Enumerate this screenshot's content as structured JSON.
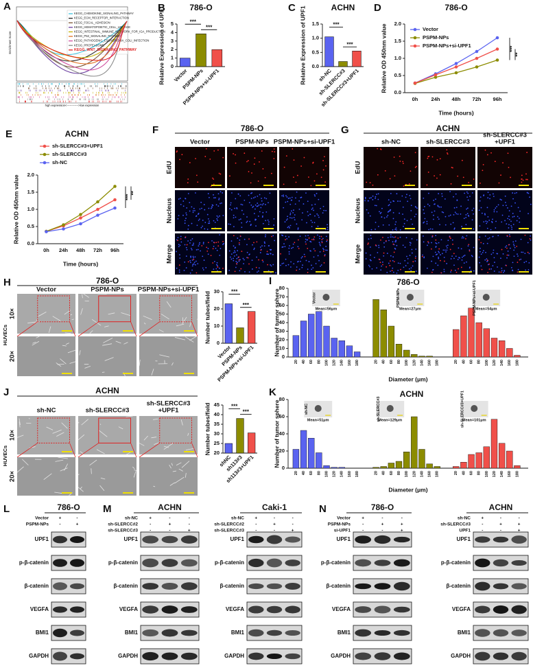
{
  "figure": {
    "A": {
      "label": "A",
      "ylabel": "Enrichment Score",
      "pathways": [
        {
          "name": "KEGG_CHEMOKINE_SIGNALING_PATHWAY",
          "color": "#3bc4e0"
        },
        {
          "name": "KEGG_ECM_RECEPTOR_INTERACTION",
          "color": "#222222"
        },
        {
          "name": "KEGG_FOCAL_ADHESION",
          "color": "#7a5230"
        },
        {
          "name": "KEGG_HEMATOPOIETIC_CELL_LINEAGE",
          "color": "#6b3fa0"
        },
        {
          "name": "KEGG_INTESTINAL_IMMUNE_NETWORK_FOR_IGA_PRODUCTION",
          "color": "#c4b000"
        },
        {
          "name": "KEGG_P53_SIGNALING_PATHWAY",
          "color": "#e07020"
        },
        {
          "name": "KEGG_PATHOGENIC_ESCHERICHIA_COLI_INFECTION",
          "color": "#d050a0"
        },
        {
          "name": "KEGG_PROTEASOME",
          "color": "#8a8a8a"
        },
        {
          "name": "KEGG_WNT_SIGNALING_PATHWAY",
          "color": "#e02020",
          "emphasis": true
        }
      ],
      "footer": "high expression<------------>low expression"
    },
    "F": {
      "label": "F",
      "title": "786-O",
      "columns": [
        [
          "Vector"
        ],
        [
          "PSPM-NPs"
        ],
        [
          "PSPM-NPs+si-UPF1"
        ]
      ],
      "rows": [
        "EdU",
        "Nucleus",
        "Merge"
      ]
    },
    "G": {
      "label": "G",
      "title": "ACHN",
      "columns": [
        [
          "sh-NC"
        ],
        [
          "sh-SLERCC#3"
        ],
        [
          "sh-SLERCC#3",
          "+UPF1"
        ]
      ],
      "rows": [
        "EdU",
        "Nucleus",
        "Merge"
      ]
    },
    "H": {
      "label": "H",
      "title": "786-O",
      "side": "HUVECs",
      "columns": [
        [
          "Vector"
        ],
        [
          "PSPM-NPs"
        ],
        [
          "PSPM-NPs+si-UPF1"
        ]
      ],
      "rows": [
        "10×",
        "20×"
      ]
    },
    "J": {
      "label": "J",
      "title": "ACHN",
      "side": "HUVECs",
      "columns": [
        [
          "sh-NC"
        ],
        [
          "sh-SLERCC#3"
        ],
        [
          "sh-SLERCC#3",
          "+UPF1"
        ]
      ],
      "rows": [
        "10×",
        "20×"
      ]
    }
  },
  "chart_data": [
    {
      "label": "B",
      "type": "bar",
      "title": "786-O",
      "ylabel": "Relative Expression of UPF1",
      "categories": [
        "Vector",
        "PSPM-NPs",
        "PSPM-NPs+si-UPF1"
      ],
      "values": [
        1.0,
        3.85,
        2.0
      ],
      "colors": [
        "#5a63f0",
        "#8c8c00",
        "#f0504a"
      ],
      "ylim": [
        0,
        5
      ],
      "yticks": [
        0,
        1,
        2,
        3,
        4,
        5
      ],
      "annotations": [
        "***",
        "***"
      ]
    },
    {
      "label": "C",
      "type": "bar",
      "title": "ACHN",
      "ylabel": "Relative Expression of UPF1",
      "categories": [
        "sh-NC",
        "sh-SLERCC#3",
        "sh-SLERCC#3+UPF1"
      ],
      "values": [
        1.05,
        0.18,
        0.55
      ],
      "colors": [
        "#5a63f0",
        "#8c8c00",
        "#f0504a"
      ],
      "ylim": [
        0,
        1.5
      ],
      "yticks": [
        {
          "value": 0,
          "label": "0.0"
        },
        {
          "value": 0.5,
          "label": "0.5"
        },
        {
          "value": 1,
          "label": "1.0"
        },
        {
          "value": 1.5,
          "label": "1.5"
        }
      ],
      "annotations": [
        "***",
        "***"
      ]
    },
    {
      "label": "D",
      "type": "line",
      "title": "786-O",
      "ylabel": "Relative OD 450nm value",
      "xlabel": "Time (hours)",
      "categories": [
        "0h",
        "24h",
        "48h",
        "72h",
        "96h"
      ],
      "series": [
        {
          "name": "Vector",
          "color": "#5a63f0",
          "values": [
            0.28,
            0.55,
            0.85,
            1.2,
            1.6
          ]
        },
        {
          "name": "PSPM-NPs",
          "color": "#8c8c00",
          "values": [
            0.27,
            0.45,
            0.58,
            0.75,
            0.95
          ]
        },
        {
          "name": "PSPM-NPs+si-UPF1",
          "color": "#f0504a",
          "values": [
            0.28,
            0.52,
            0.75,
            1.0,
            1.27
          ]
        }
      ],
      "ylim": [
        0,
        2
      ],
      "yticks": [
        {
          "value": 0,
          "label": "0.0"
        },
        {
          "value": 0.5,
          "label": "0.5"
        },
        {
          "value": 1,
          "label": "1.0"
        },
        {
          "value": 1.5,
          "label": "1.5"
        },
        {
          "value": 2,
          "label": "2.0"
        }
      ],
      "annotations": [
        "***",
        "**"
      ]
    },
    {
      "label": "E",
      "type": "line",
      "title": "ACHN",
      "ylabel": "Relative OD 450nm value",
      "xlabel": "Time (hours)",
      "categories": [
        "0h",
        "24h",
        "48h",
        "72h",
        "96h"
      ],
      "series": [
        {
          "name": "sh-SLERCC#3+UPF1",
          "color": "#f0504a",
          "values": [
            0.36,
            0.52,
            0.75,
            1.0,
            1.28
          ]
        },
        {
          "name": "sh-SLERCC#3",
          "color": "#8c8c00",
          "values": [
            0.36,
            0.55,
            0.85,
            1.22,
            1.67
          ]
        },
        {
          "name": "sh-NC",
          "color": "#5a63f0",
          "values": [
            0.35,
            0.43,
            0.58,
            0.83,
            1.04
          ]
        }
      ],
      "ylim": [
        0,
        2
      ],
      "yticks": [
        {
          "value": 0,
          "label": "0.0"
        },
        {
          "value": 0.5,
          "label": "0.5"
        },
        {
          "value": 1,
          "label": "1.0"
        },
        {
          "value": 1.5,
          "label": "1.5"
        },
        {
          "value": 2,
          "label": "2.0"
        }
      ],
      "annotations": [
        "***",
        "**"
      ]
    },
    {
      "type": "bar",
      "ylabel": "Number tubes/field",
      "categories": [
        "Vector",
        "PSPM-NPs",
        "PSPM-NPs+si-UPF1"
      ],
      "values": [
        23,
        9,
        18.5
      ],
      "colors": [
        "#5a63f0",
        "#8c8c00",
        "#f0504a"
      ],
      "ylim": [
        0,
        30
      ],
      "yticks": [
        0,
        10,
        20,
        30
      ],
      "annotations": [
        "***",
        "***"
      ]
    },
    {
      "label": "I",
      "type": "bar",
      "title": "786-O",
      "ylabel": "Number of tumor sphere",
      "xlabel": "Diameter (μm)",
      "categories": [
        "20",
        "40",
        "60",
        "80",
        "100",
        "120",
        "140",
        "160",
        "180"
      ],
      "series": [
        {
          "name": "Vector",
          "color": "#5a63f0",
          "mean_label": "Mean=56μm",
          "values": [
            25,
            42,
            50,
            53,
            36,
            22,
            19,
            13,
            6
          ]
        },
        {
          "name": "PSPM-NPs",
          "color": "#8c8c00",
          "mean_label": "Mean=27μm",
          "values": [
            67,
            55,
            36,
            15,
            8,
            3,
            1,
            1,
            0
          ]
        },
        {
          "name": "PSPM-NPs+si-UPF1",
          "color": "#f0504a",
          "mean_label": "Mean=54μm",
          "values": [
            32,
            48,
            57,
            40,
            33,
            22,
            19,
            10,
            2
          ]
        }
      ],
      "ylim": [
        0,
        80
      ],
      "yticks": [
        0,
        10,
        20,
        30,
        40,
        50,
        60,
        70,
        80
      ]
    },
    {
      "type": "bar",
      "ylabel": "Number tubes/field",
      "categories": [
        "shNC",
        "sh113#3",
        "sh113#3+UPF1"
      ],
      "values": [
        25,
        38,
        30.5
      ],
      "colors": [
        "#5a63f0",
        "#8c8c00",
        "#f0504a"
      ],
      "ylim": [
        20,
        45
      ],
      "yticks": [
        20,
        25,
        30,
        35,
        40,
        45
      ],
      "annotations": [
        "***",
        "***"
      ]
    },
    {
      "label": "K",
      "type": "bar",
      "title": "ACHN",
      "ylabel": "Number of tumor sphere",
      "xlabel": "Diameter (μm)",
      "categories": [
        "20",
        "40",
        "60",
        "80",
        "100",
        "120",
        "140",
        "160",
        "180"
      ],
      "series": [
        {
          "name": "sh-NC",
          "color": "#5a63f0",
          "mean_label": "Mean=51μm",
          "values": [
            22,
            44,
            35,
            18,
            3,
            1,
            1,
            0,
            0
          ]
        },
        {
          "name": "sh-SLERCC#3",
          "color": "#8c8c00",
          "mean_label": "Mean=129μm",
          "values": [
            1,
            2,
            6,
            8,
            19,
            60,
            22,
            5,
            2
          ]
        },
        {
          "name": "sh-SLERCC#3+UPF1",
          "color": "#f0504a",
          "mean_label": "Mean=101μm",
          "values": [
            2,
            7,
            16,
            18,
            25,
            57,
            29,
            20,
            3
          ]
        }
      ],
      "ylim": [
        0,
        80
      ],
      "yticks": [
        0,
        20,
        40,
        60,
        80
      ]
    }
  ],
  "blots": [
    {
      "label": "L",
      "blocks": [
        {
          "title": "786-O",
          "conditions": [
            {
              "name": "Vector",
              "signs": [
                "+",
                "-"
              ]
            },
            {
              "name": "PSPM-NPs",
              "signs": [
                "-",
                "+"
              ]
            }
          ],
          "proteins": [
            "UPF1",
            "p-β-catenin",
            "β-catenin",
            "VEGFA",
            "BMI1",
            "GAPDH"
          ]
        }
      ]
    },
    {
      "label": "M",
      "blocks": [
        {
          "title": "ACHN",
          "conditions": [
            {
              "name": "sh-NC",
              "signs": [
                "+",
                "-",
                "-"
              ]
            },
            {
              "name": "sh-SLERCC#2",
              "signs": [
                "-",
                "+",
                "-"
              ]
            },
            {
              "name": "sh-SLERCC#3",
              "signs": [
                "-",
                "-",
                "+"
              ]
            }
          ],
          "proteins": [
            "UPF1",
            "p-β-catenin",
            "β-catenin",
            "VEGFA",
            "BMI1",
            "GAPDH"
          ]
        },
        {
          "title": "Caki-1",
          "conditions": [
            {
              "name": "sh-NC",
              "signs": [
                "+",
                "-",
                "-"
              ]
            },
            {
              "name": "sh-SLERCC#2",
              "signs": [
                "-",
                "+",
                "-"
              ]
            },
            {
              "name": "sh-SLERCC#3",
              "signs": [
                "-",
                "-",
                "+"
              ]
            }
          ],
          "proteins": [
            "UPF1",
            "p-β-catenin",
            "β-catenin",
            "VEGFA",
            "BMI1",
            "GAPDH"
          ]
        }
      ]
    },
    {
      "label": "N",
      "blocks": [
        {
          "title": "786-O",
          "conditions": [
            {
              "name": "Vector",
              "signs": [
                "+",
                "-",
                "-"
              ]
            },
            {
              "name": "PSPM-NPs",
              "signs": [
                "-",
                "+",
                "+"
              ]
            },
            {
              "name": "si-UPF1",
              "signs": [
                "-",
                "-",
                "+"
              ]
            }
          ],
          "proteins": [
            "UPF1",
            "p-β-catenin",
            "β-catenin",
            "VEGFA",
            "BMI1",
            "GAPDH"
          ]
        },
        {
          "title": "ACHN",
          "conditions": [
            {
              "name": "sh-NC",
              "signs": [
                "+",
                "-",
                "-"
              ]
            },
            {
              "name": "sh-SLERCC#3",
              "signs": [
                "-",
                "+",
                "+"
              ]
            },
            {
              "name": "UPF1",
              "signs": [
                "-",
                "-",
                "+"
              ]
            }
          ],
          "proteins": [
            "UPF1",
            "p-β-catenin",
            "β-catenin",
            "VEGFA",
            "BMI1",
            "GAPDH"
          ]
        }
      ]
    }
  ]
}
